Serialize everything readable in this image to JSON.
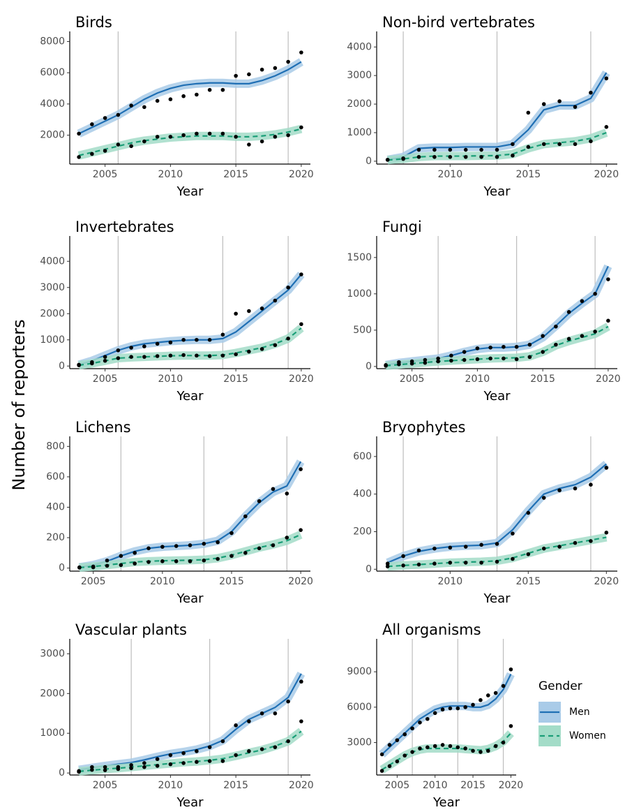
{
  "y_label": "Number of reporters",
  "legend_title": "Gender",
  "chart_data": [
    {
      "type": "line",
      "title": "Birds",
      "x_label": "Year",
      "x": [
        2003,
        2004,
        2005,
        2006,
        2007,
        2008,
        2009,
        2010,
        2011,
        2012,
        2013,
        2014,
        2015,
        2016,
        2017,
        2018,
        2019,
        2020
      ],
      "xlim": [
        2002.3,
        2020.7
      ],
      "xticks": [
        2005,
        2010,
        2015,
        2020
      ],
      "ylim": [
        150,
        8200
      ],
      "yticks": [
        2000,
        4000,
        6000,
        8000
      ],
      "vlines": [
        2006,
        2015,
        2019
      ],
      "series": [
        {
          "name": "Men",
          "color": "#1f6fb4",
          "values": [
            2100,
            2700,
            3100,
            3300,
            3900,
            3800,
            4200,
            4300,
            4500,
            4600,
            4900,
            4900,
            5800,
            5900,
            6200,
            6300,
            6700,
            7300
          ],
          "fit": [
            2100,
            2500,
            2900,
            3300,
            3800,
            4300,
            4700,
            5000,
            5200,
            5300,
            5350,
            5350,
            5300,
            5300,
            5500,
            5800,
            6200,
            6700
          ]
        },
        {
          "name": "Women",
          "color": "#1a9e77",
          "values": [
            600,
            800,
            1000,
            1400,
            1300,
            1600,
            1900,
            1900,
            2000,
            2100,
            2100,
            2100,
            1900,
            1400,
            1600,
            1900,
            2000,
            2500
          ],
          "fit": [
            700,
            900,
            1100,
            1300,
            1500,
            1650,
            1750,
            1850,
            1900,
            1950,
            1950,
            1950,
            1900,
            1900,
            1950,
            2050,
            2200,
            2400
          ]
        }
      ]
    },
    {
      "type": "line",
      "title": "Non-bird vertebrates",
      "x_label": "Year",
      "x": [
        2006,
        2007,
        2008,
        2009,
        2010,
        2011,
        2012,
        2013,
        2014,
        2015,
        2016,
        2017,
        2018,
        2019,
        2020
      ],
      "xlim": [
        2005.3,
        2020.7
      ],
      "xticks": [
        2010,
        2015,
        2020
      ],
      "ylim": [
        -100,
        4300
      ],
      "yticks": [
        0,
        1000,
        2000,
        3000,
        4000
      ],
      "vlines": [
        2007,
        2013,
        2019
      ],
      "series": [
        {
          "name": "Men",
          "color": "#1f6fb4",
          "values": [
            50,
            100,
            400,
            400,
            400,
            400,
            400,
            400,
            600,
            1700,
            2000,
            2100,
            1900,
            2400,
            2900
          ],
          "fit": [
            50,
            150,
            450,
            480,
            480,
            500,
            500,
            500,
            600,
            1100,
            1800,
            1950,
            1950,
            2200,
            3100
          ]
        },
        {
          "name": "Women",
          "color": "#1a9e77",
          "values": [
            50,
            80,
            150,
            150,
            150,
            150,
            150,
            150,
            200,
            500,
            600,
            600,
            600,
            700,
            1200
          ],
          "fit": [
            40,
            80,
            150,
            180,
            180,
            180,
            190,
            200,
            250,
            450,
            600,
            650,
            700,
            800,
            1000
          ]
        }
      ]
    },
    {
      "type": "line",
      "title": "Invertebrates",
      "x_label": "Year",
      "x": [
        2003,
        2004,
        2005,
        2006,
        2007,
        2008,
        2009,
        2010,
        2011,
        2012,
        2013,
        2014,
        2015,
        2016,
        2017,
        2018,
        2019,
        2020
      ],
      "xlim": [
        2002.3,
        2020.7
      ],
      "xticks": [
        2005,
        2010,
        2015,
        2020
      ],
      "ylim": [
        -100,
        4700
      ],
      "yticks": [
        0,
        1000,
        2000,
        3000,
        4000
      ],
      "vlines": [
        2006,
        2014,
        2019
      ],
      "series": [
        {
          "name": "Men",
          "color": "#1f6fb4",
          "values": [
            50,
            150,
            350,
            600,
            700,
            750,
            850,
            900,
            1000,
            1000,
            1000,
            1200,
            2000,
            2100,
            2200,
            2500,
            3000,
            3500
          ],
          "fit": [
            50,
            200,
            400,
            600,
            750,
            850,
            900,
            950,
            980,
            1000,
            1000,
            1050,
            1300,
            1700,
            2100,
            2500,
            2900,
            3500
          ]
        },
        {
          "name": "Women",
          "color": "#1a9e77",
          "values": [
            30,
            100,
            200,
            300,
            350,
            350,
            380,
            400,
            420,
            400,
            380,
            400,
            450,
            550,
            650,
            800,
            1050,
            1600
          ],
          "fit": [
            30,
            100,
            200,
            300,
            330,
            350,
            370,
            390,
            400,
            400,
            400,
            420,
            500,
            600,
            700,
            850,
            1050,
            1450
          ]
        }
      ]
    },
    {
      "type": "line",
      "title": "Fungi",
      "x_label": "Year",
      "x": [
        2003,
        2004,
        2005,
        2006,
        2007,
        2008,
        2009,
        2010,
        2011,
        2012,
        2013,
        2014,
        2015,
        2016,
        2017,
        2018,
        2019,
        2020
      ],
      "xlim": [
        2002.3,
        2020.7
      ],
      "xticks": [
        2005,
        2010,
        2015,
        2020
      ],
      "ylim": [
        -30,
        1700
      ],
      "yticks": [
        0,
        500,
        1000,
        1500
      ],
      "vlines": [
        2007,
        2013,
        2019
      ],
      "series": [
        {
          "name": "Men",
          "color": "#1f6fb4",
          "values": [
            20,
            60,
            70,
            90,
            110,
            150,
            200,
            250,
            260,
            270,
            270,
            300,
            420,
            550,
            750,
            900,
            1000,
            1200
          ],
          "fit": [
            20,
            50,
            70,
            90,
            110,
            150,
            200,
            240,
            260,
            260,
            270,
            300,
            400,
            560,
            730,
            870,
            1000,
            1380
          ]
        },
        {
          "name": "Women",
          "color": "#1a9e77",
          "values": [
            10,
            30,
            40,
            50,
            70,
            80,
            90,
            100,
            110,
            110,
            100,
            130,
            200,
            300,
            380,
            420,
            480,
            630
          ],
          "fit": [
            10,
            25,
            40,
            55,
            70,
            80,
            90,
            100,
            110,
            115,
            120,
            140,
            200,
            290,
            350,
            400,
            450,
            550
          ]
        }
      ]
    },
    {
      "type": "line",
      "title": "Lichens",
      "x_label": "Year",
      "x": [
        2004,
        2005,
        2006,
        2007,
        2008,
        2009,
        2010,
        2011,
        2012,
        2013,
        2014,
        2015,
        2016,
        2017,
        2018,
        2019,
        2020
      ],
      "xlim": [
        2003.3,
        2020.7
      ],
      "xticks": [
        2005,
        2010,
        2015,
        2020
      ],
      "ylim": [
        -20,
        820
      ],
      "yticks": [
        0,
        200,
        400,
        600,
        800
      ],
      "vlines": [
        2007,
        2013,
        2019
      ],
      "series": [
        {
          "name": "Men",
          "color": "#1f6fb4",
          "values": [
            5,
            10,
            50,
            80,
            100,
            130,
            140,
            145,
            150,
            160,
            170,
            230,
            340,
            440,
            520,
            490,
            650
          ],
          "fit": [
            5,
            20,
            45,
            80,
            110,
            130,
            140,
            145,
            150,
            160,
            180,
            240,
            340,
            430,
            500,
            540,
            700
          ]
        },
        {
          "name": "Women",
          "color": "#1a9e77",
          "values": [
            3,
            5,
            15,
            20,
            30,
            40,
            45,
            45,
            45,
            50,
            60,
            80,
            100,
            130,
            150,
            200,
            250
          ],
          "fit": [
            3,
            10,
            20,
            30,
            40,
            45,
            48,
            50,
            52,
            55,
            65,
            85,
            110,
            135,
            155,
            180,
            220
          ]
        }
      ]
    },
    {
      "type": "line",
      "title": "Bryophytes",
      "x_label": "Year",
      "x": [
        2006,
        2007,
        2008,
        2009,
        2010,
        2011,
        2012,
        2013,
        2014,
        2015,
        2016,
        2017,
        2018,
        2019,
        2020
      ],
      "xlim": [
        2005.3,
        2020.7
      ],
      "xticks": [
        2010,
        2015,
        2020
      ],
      "ylim": [
        -10,
        670
      ],
      "yticks": [
        0,
        200,
        400,
        600
      ],
      "vlines": [
        2007,
        2013,
        2019
      ],
      "series": [
        {
          "name": "Men",
          "color": "#1f6fb4",
          "values": [
            30,
            70,
            100,
            110,
            115,
            120,
            130,
            135,
            190,
            300,
            380,
            420,
            430,
            450,
            540
          ],
          "fit": [
            35,
            70,
            95,
            110,
            120,
            125,
            128,
            140,
            210,
            310,
            400,
            430,
            450,
            490,
            560
          ]
        },
        {
          "name": "Women",
          "color": "#1a9e77",
          "values": [
            15,
            20,
            25,
            30,
            35,
            35,
            35,
            40,
            55,
            80,
            110,
            120,
            140,
            150,
            195
          ],
          "fit": [
            15,
            20,
            25,
            30,
            35,
            38,
            40,
            45,
            60,
            85,
            110,
            125,
            140,
            155,
            170
          ]
        }
      ]
    },
    {
      "type": "line",
      "title": "Vascular plants",
      "x_label": "Year",
      "x": [
        2003,
        2004,
        2005,
        2006,
        2007,
        2008,
        2009,
        2010,
        2011,
        2012,
        2013,
        2014,
        2015,
        2016,
        2017,
        2018,
        2019,
        2020
      ],
      "xlim": [
        2002.3,
        2020.7
      ],
      "xticks": [
        2005,
        2010,
        2015,
        2020
      ],
      "ylim": [
        -50,
        3200
      ],
      "yticks": [
        0,
        1000,
        2000,
        3000
      ],
      "vlines": [
        2007,
        2013,
        2019
      ],
      "series": [
        {
          "name": "Men",
          "color": "#1f6fb4",
          "values": [
            50,
            150,
            150,
            150,
            200,
            250,
            350,
            450,
            500,
            550,
            650,
            800,
            1200,
            1300,
            1500,
            1500,
            1800,
            2300
          ],
          "fit": [
            80,
            130,
            180,
            220,
            260,
            330,
            410,
            480,
            530,
            590,
            680,
            820,
            1100,
            1350,
            1500,
            1650,
            1900,
            2500
          ]
        },
        {
          "name": "Women",
          "color": "#1a9e77",
          "values": [
            30,
            80,
            70,
            100,
            120,
            150,
            180,
            220,
            250,
            280,
            300,
            300,
            450,
            550,
            600,
            650,
            800,
            1300
          ],
          "fit": [
            40,
            70,
            100,
            120,
            150,
            180,
            210,
            240,
            270,
            290,
            320,
            360,
            430,
            510,
            580,
            680,
            800,
            1050
          ]
        }
      ]
    },
    {
      "type": "line",
      "title": "All organisms",
      "x_label": "Year",
      "x": [
        2003,
        2004,
        2005,
        2006,
        2007,
        2008,
        2009,
        2010,
        2011,
        2012,
        2013,
        2014,
        2015,
        2016,
        2017,
        2018,
        2019,
        2020
      ],
      "xlim": [
        2002.3,
        2020.7
      ],
      "xticks": [
        2005,
        2010,
        2015,
        2020
      ],
      "ylim": [
        250,
        11200
      ],
      "yticks": [
        3000,
        6000,
        9000
      ],
      "vlines": [
        2007,
        2013,
        2019
      ],
      "series": [
        {
          "name": "Men",
          "color": "#1f6fb4",
          "values": [
            2000,
            2800,
            3200,
            3700,
            4200,
            4700,
            5000,
            5500,
            5800,
            5900,
            5900,
            6000,
            6200,
            6600,
            7000,
            7200,
            7800,
            9200
          ],
          "fit": [
            2000,
            2600,
            3200,
            3800,
            4400,
            5000,
            5400,
            5800,
            6000,
            6100,
            6100,
            6100,
            6000,
            6000,
            6200,
            6700,
            7500,
            8800
          ]
        },
        {
          "name": "Women",
          "color": "#1a9e77",
          "values": [
            600,
            1000,
            1400,
            1900,
            2200,
            2500,
            2600,
            2700,
            2800,
            2700,
            2600,
            2500,
            2300,
            2200,
            2300,
            2700,
            3000,
            4400
          ],
          "fit": [
            700,
            1100,
            1500,
            1900,
            2200,
            2400,
            2500,
            2500,
            2500,
            2500,
            2500,
            2450,
            2400,
            2350,
            2450,
            2700,
            3100,
            3800
          ]
        }
      ]
    }
  ]
}
